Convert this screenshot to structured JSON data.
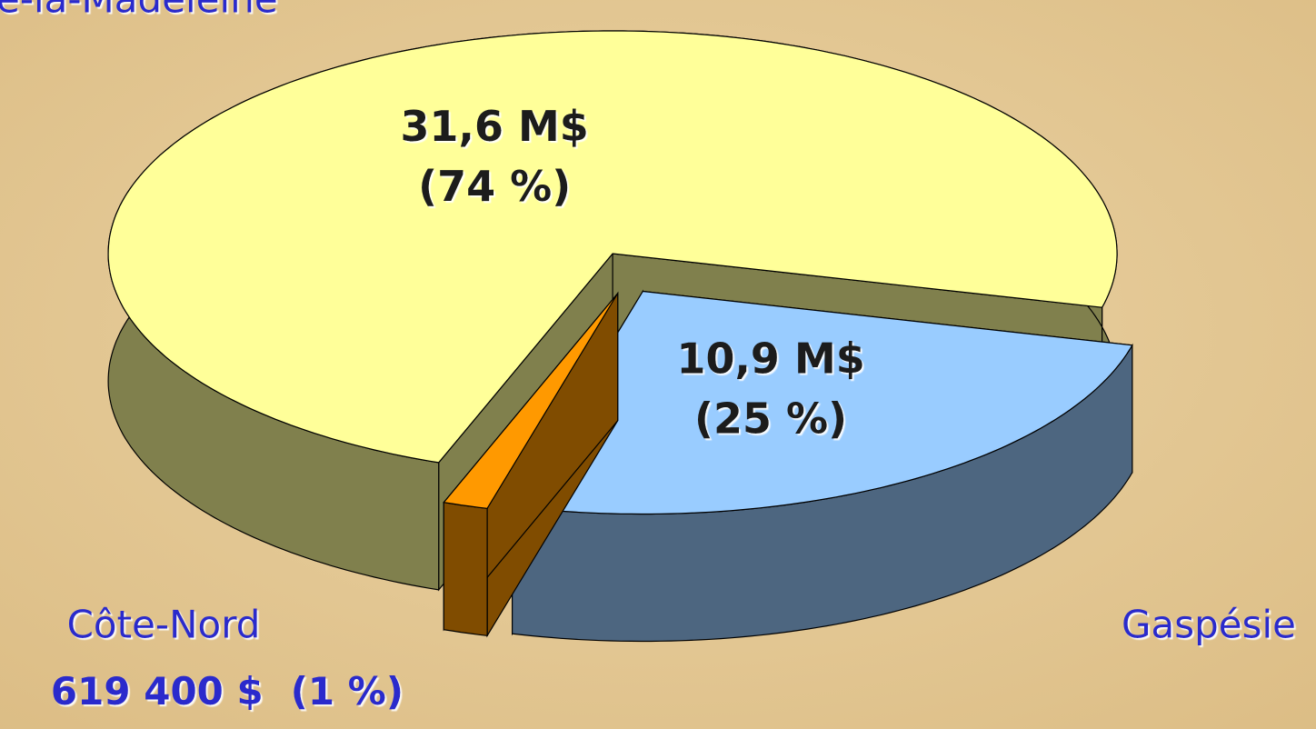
{
  "chart_data": {
    "type": "pie",
    "categories": [
      "Gaspésie",
      "Côte-Nord",
      "e-la-Madeleine"
    ],
    "values": [
      10900000,
      619400,
      31600000
    ],
    "value_labels": [
      "10,9 M$",
      "619 400 $",
      "31,6 M$"
    ],
    "percent_labels": [
      "(25 %)",
      "(1 %)",
      "(74 %)"
    ],
    "colors": [
      "#99ccff",
      "#ff9900",
      "#ffff99"
    ],
    "side_colors": [
      "#4d6680",
      "#804c00",
      "#80804d"
    ]
  }
}
